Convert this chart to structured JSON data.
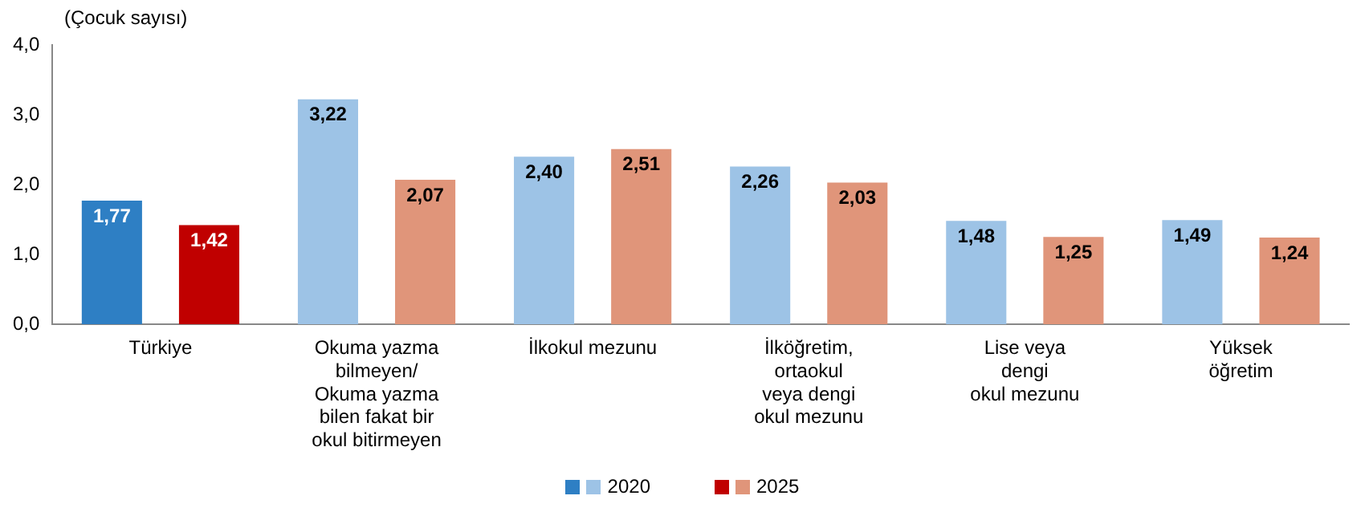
{
  "chart_data": {
    "type": "bar",
    "ylabel": "(Çocuk sayısı)",
    "categories": [
      "Türkiye",
      "Okuma yazma\nbilmeyen/\nOkuma yazma\nbilen fakat bir\nokul bitirmeyen",
      "İlkokul mezunu",
      "İlköğretim,\nortaokul\nveya dengi\nokul mezunu",
      "Lise veya\ndengi\nokul mezunu",
      "Yüksek\nöğretim"
    ],
    "series": [
      {
        "name": "2020",
        "colors": [
          "#2e7fc4",
          "#9dc3e6",
          "#9dc3e6",
          "#9dc3e6",
          "#9dc3e6",
          "#9dc3e6"
        ],
        "values": [
          1.77,
          3.22,
          2.4,
          2.26,
          1.48,
          1.49
        ],
        "value_labels": [
          "1,77",
          "3,22",
          "2,40",
          "2,26",
          "1,48",
          "1,49"
        ]
      },
      {
        "name": "2025",
        "colors": [
          "#c00000",
          "#e0957a",
          "#e0957a",
          "#e0957a",
          "#e0957a",
          "#e0957a"
        ],
        "values": [
          1.42,
          2.07,
          2.51,
          2.03,
          1.25,
          1.24
        ],
        "value_labels": [
          "1,42",
          "2,07",
          "2,51",
          "2,03",
          "1,25",
          "1,24"
        ]
      }
    ],
    "ylim": [
      0,
      4
    ],
    "yticks": [
      {
        "value": 0,
        "label": "0,0"
      },
      {
        "value": 1,
        "label": "1,0"
      },
      {
        "value": 2,
        "label": "2,0"
      },
      {
        "value": 3,
        "label": "3,0"
      },
      {
        "value": 4,
        "label": "4,0"
      }
    ],
    "grid": false,
    "legend": "bottom"
  }
}
